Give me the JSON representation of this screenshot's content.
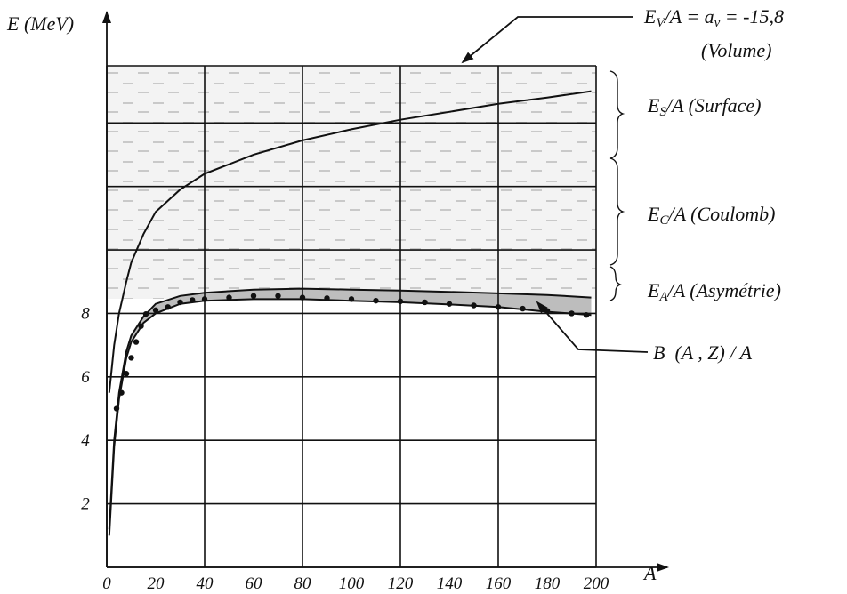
{
  "chart_data": {
    "type": "line",
    "ylabel": "E (MeV)",
    "xlabel": "A",
    "x_ticks": [
      "0",
      "20",
      "40",
      "60",
      "80",
      "100",
      "120",
      "140",
      "160",
      "180",
      "200"
    ],
    "y_ticks": [
      "2",
      "4",
      "6",
      "8"
    ],
    "xlim": [
      0,
      200
    ],
    "ylim": [
      0,
      15.8
    ],
    "grid": true,
    "series": [
      {
        "name": "",
        "x": [
          1,
          3,
          5,
          8,
          10,
          15,
          20,
          30,
          40,
          60,
          80,
          100,
          120,
          140,
          160,
          180,
          198
        ],
        "y": [
          5.5,
          7.0,
          8.0,
          9.0,
          9.6,
          10.5,
          11.2,
          11.9,
          12.4,
          13.0,
          13.45,
          13.8,
          14.1,
          14.35,
          14.6,
          14.8,
          15.0
        ]
      },
      {
        "name": "",
        "x": [
          1,
          3,
          5,
          8,
          10,
          15,
          20,
          30,
          40,
          60,
          80,
          100,
          120,
          140,
          160,
          180,
          198
        ],
        "y": [
          1.2,
          4.0,
          5.5,
          6.8,
          7.3,
          7.9,
          8.3,
          8.55,
          8.65,
          8.75,
          8.78,
          8.75,
          8.72,
          8.68,
          8.63,
          8.58,
          8.5
        ]
      },
      {
        "name": "",
        "x": [
          1,
          3,
          5,
          8,
          10,
          15,
          20,
          30,
          40,
          60,
          80,
          100,
          120,
          140,
          160,
          180,
          198
        ],
        "y": [
          1.0,
          3.8,
          5.3,
          6.6,
          7.1,
          7.7,
          8.0,
          8.3,
          8.4,
          8.45,
          8.45,
          8.4,
          8.35,
          8.28,
          8.2,
          8.05,
          7.95
        ]
      }
    ],
    "points": {
      "name": "B (A, Z) / A",
      "x": [
        4,
        6,
        8,
        10,
        12,
        14,
        16,
        20,
        25,
        30,
        35,
        40,
        50,
        60,
        70,
        80,
        90,
        100,
        110,
        120,
        130,
        140,
        150,
        160,
        170,
        180,
        190,
        196
      ],
      "y": [
        5.0,
        5.5,
        6.1,
        6.6,
        7.1,
        7.6,
        7.98,
        8.1,
        8.2,
        8.35,
        8.42,
        8.45,
        8.5,
        8.55,
        8.55,
        8.5,
        8.48,
        8.45,
        8.4,
        8.38,
        8.35,
        8.3,
        8.25,
        8.2,
        8.15,
        8.08,
        8.0,
        7.95
      ]
    },
    "annotations": {
      "volume_formula": "EV/A = av = -15,8",
      "volume": "(Volume)",
      "surface": "ES/A (Surface)",
      "coulomb": "EC/A (Coulomb)",
      "asymmetry": "EA/A (Asymétrie)",
      "binding": "B  (A , Z) / A"
    },
    "colors": {
      "hatch": "#c7c7c7",
      "shade": "#b8b8b8",
      "ink": "#111111"
    }
  }
}
